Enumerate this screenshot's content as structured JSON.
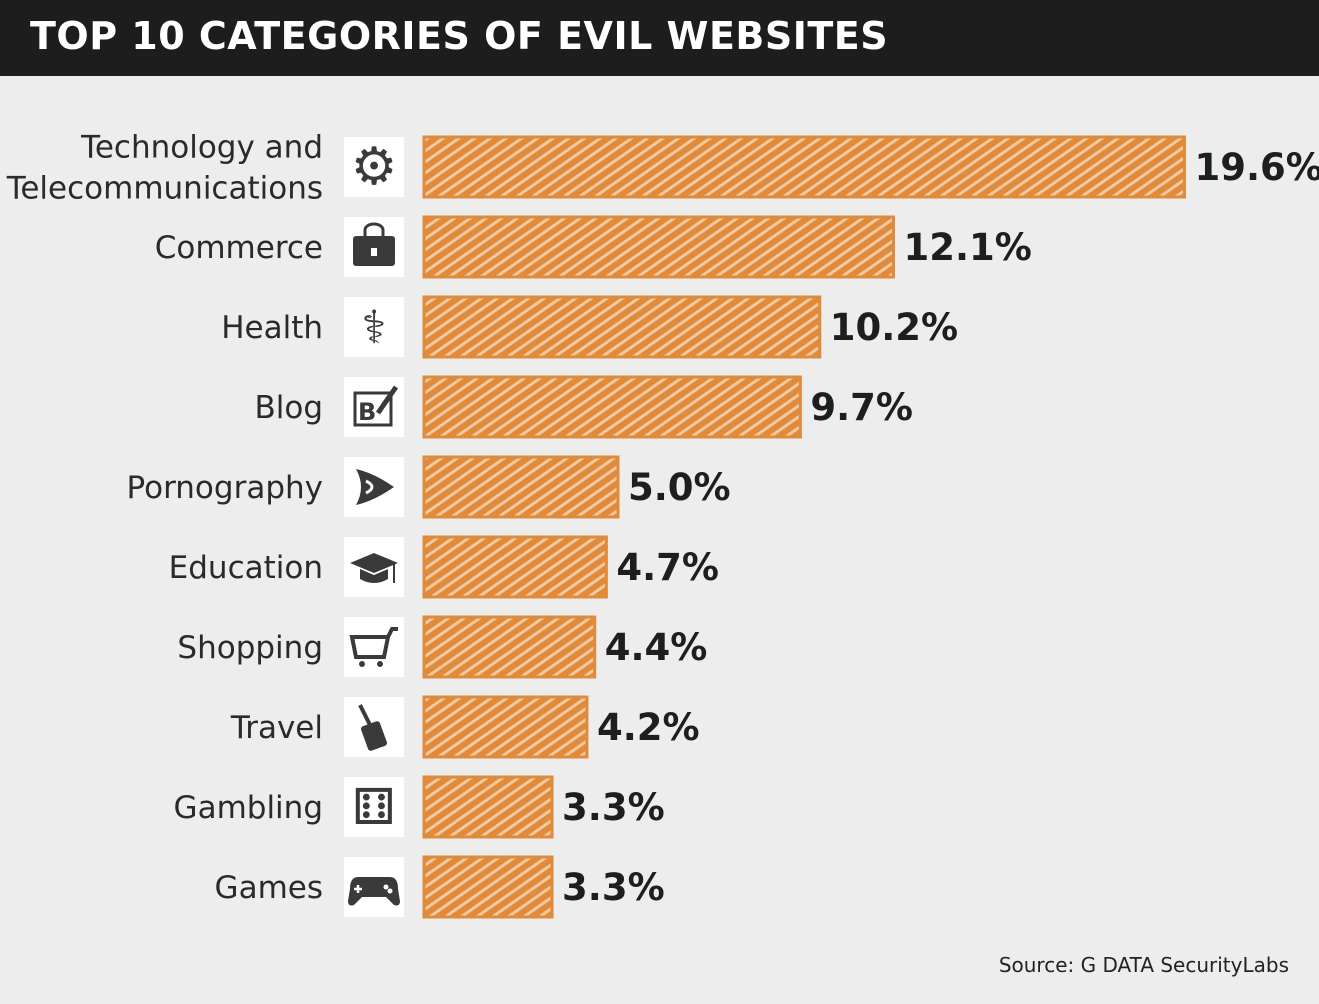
{
  "chart_data": {
    "type": "bar",
    "orientation": "horizontal",
    "title": "TOP 10 CATEGORIES OF EVIL WEBSITES",
    "categories": [
      [
        "Technology and",
        "Telecommunications"
      ],
      [
        "Commerce"
      ],
      [
        "Health"
      ],
      [
        "Blog"
      ],
      [
        "Pornography"
      ],
      [
        "Education"
      ],
      [
        "Shopping"
      ],
      [
        "Travel"
      ],
      [
        "Gambling"
      ],
      [
        "Games"
      ]
    ],
    "icons": [
      "gear-icon",
      "briefcase-icon",
      "health-icon",
      "blog-icon",
      "lips-icon",
      "graduation-cap-icon",
      "shopping-cart-icon",
      "luggage-icon",
      "dice-icon",
      "gamepad-icon"
    ],
    "values": [
      19.6,
      12.1,
      10.2,
      9.7,
      5.0,
      4.7,
      4.4,
      4.2,
      3.3,
      3.3
    ],
    "value_labels": [
      "19.6%",
      "12.1%",
      "10.2%",
      "9.7%",
      "5.0%",
      "4.7%",
      "4.4%",
      "4.2%",
      "3.3%",
      "3.3%"
    ],
    "bar_color": "#e08a3c",
    "grid": false,
    "source": "Source: G DATA SecurityLabs"
  }
}
